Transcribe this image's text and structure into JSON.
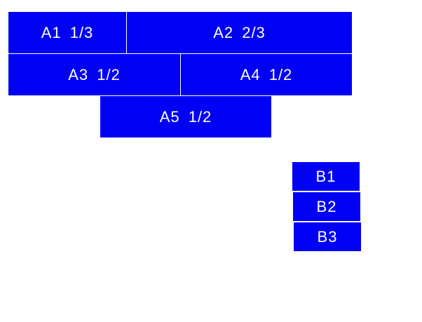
{
  "colors": {
    "box": "#0000f5",
    "text": "#ffffff"
  },
  "group_a": [
    {
      "label": "A1 1/3"
    },
    {
      "label": "A2 2/3"
    },
    {
      "label": "A3 1/2"
    },
    {
      "label": "A4 1/2"
    },
    {
      "label": "A5 1/2"
    }
  ],
  "group_b": [
    {
      "label": "B1"
    },
    {
      "label": "B2"
    },
    {
      "label": "B3"
    }
  ]
}
